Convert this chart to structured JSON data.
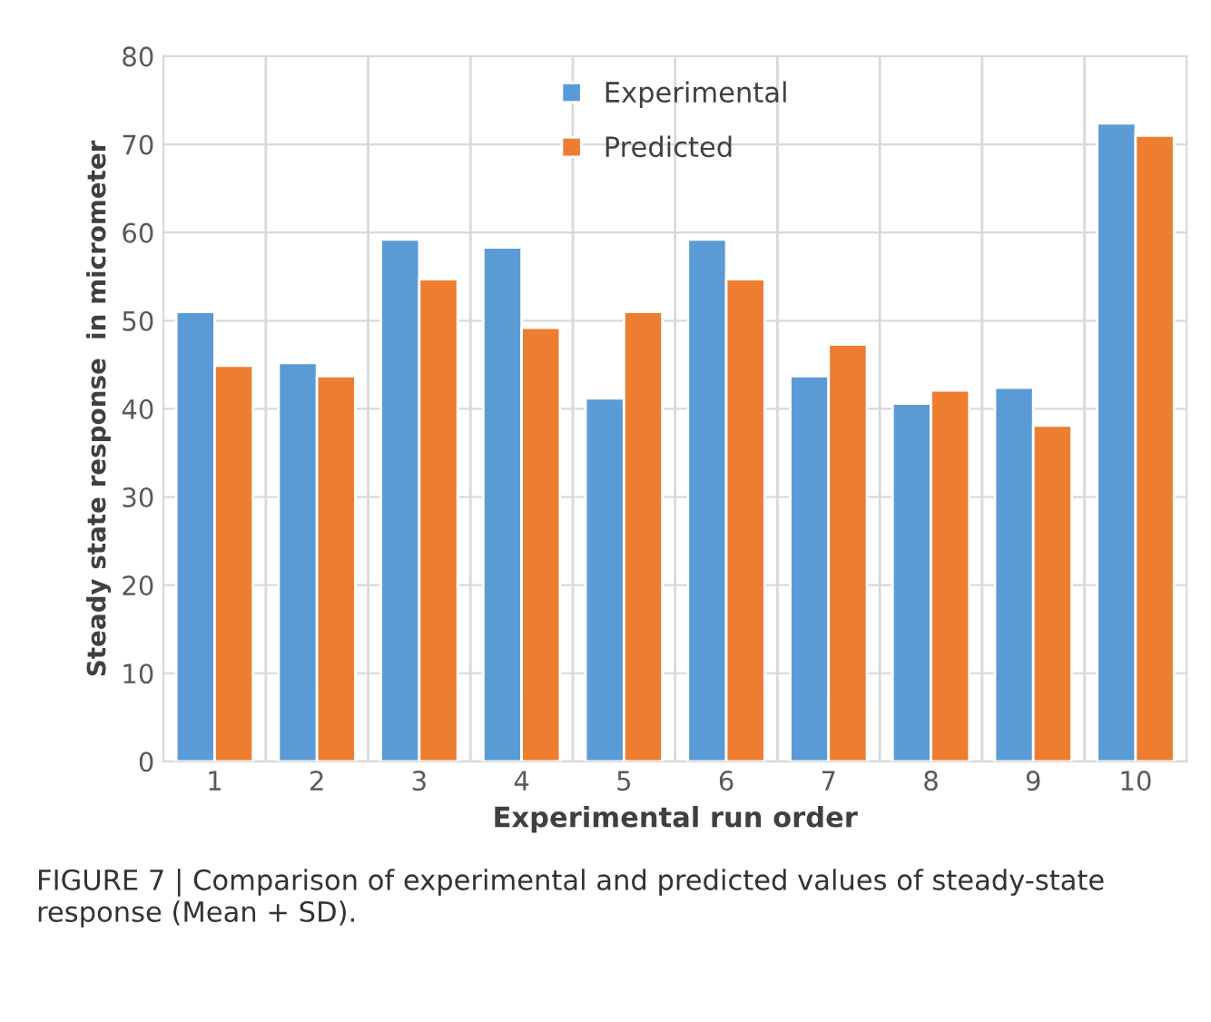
{
  "chart_data": {
    "type": "bar",
    "xlabel": "Experimental run order",
    "ylabel": "Steady state response  in micrometer",
    "categories": [
      "1",
      "2",
      "3",
      "4",
      "5",
      "6",
      "7",
      "8",
      "9",
      "10"
    ],
    "series": [
      {
        "name": "Experimental",
        "color": "#5b9bd5",
        "values": [
          51,
          45.2,
          59.2,
          58.3,
          41.2,
          59.2,
          43.7,
          40.6,
          42.4,
          72.4
        ]
      },
      {
        "name": "Predicted",
        "color": "#ed7d31",
        "values": [
          44.9,
          43.7,
          54.7,
          49.2,
          51,
          54.7,
          47.3,
          42.1,
          38.1,
          71
        ]
      }
    ],
    "ylim": [
      0,
      80
    ],
    "yticks": [
      0,
      10,
      20,
      30,
      40,
      50,
      60,
      70,
      80
    ],
    "grid": true,
    "legend": "top",
    "annotations": [
      "FIGURE 7 | Comparison of experimental and predicted values of steady-state response (Mean + SD)."
    ]
  }
}
